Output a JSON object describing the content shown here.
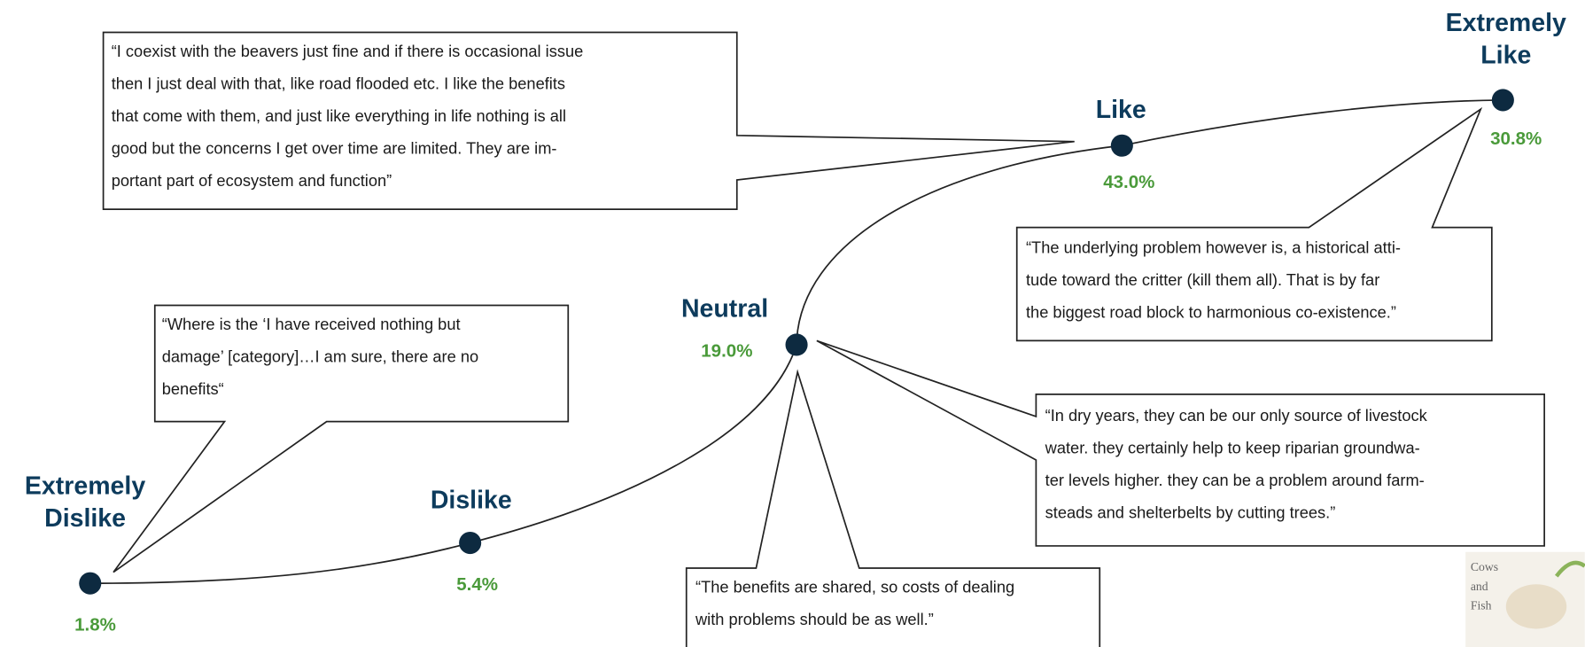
{
  "nodes": [
    {
      "label": [
        "Extremely",
        "Dislike"
      ],
      "percent": "1.8%"
    },
    {
      "label": [
        "Dislike"
      ],
      "percent": "5.4%"
    },
    {
      "label": [
        "Neutral"
      ],
      "percent": "19.0%"
    },
    {
      "label": [
        "Like"
      ],
      "percent": "43.0%"
    },
    {
      "label": [
        "Extremely",
        "Like"
      ],
      "percent": "30.8%"
    }
  ],
  "quotes": [
    {
      "lines": [
        "“I coexist with the beavers just fine and if there is occasional issue",
        "then I just deal with that, like road flooded etc.  I like the benefits",
        "that come with them, and just like everything in life nothing is all",
        "good but the concerns I get over time are limited.  They are im-",
        "portant part of ecosystem and function”"
      ]
    },
    {
      "lines": [
        "“Where is the ‘I have received nothing but",
        "damage’ [category]…I am sure, there are no",
        "benefits“"
      ]
    },
    {
      "lines": [
        "“The underlying problem however is, a historical atti-",
        "tude toward the critter (kill them all).  That is by far",
        "the biggest road block to harmonious co-existence.”"
      ]
    },
    {
      "lines": [
        "“In dry years, they can be our only source of livestock",
        "water.  they certainly help to keep riparian groundwa-",
        "ter levels higher. they can be a problem around farm-",
        "steads and shelterbelts by cutting trees.”"
      ]
    },
    {
      "lines": [
        "“The benefits are shared, so costs of dealing",
        "with problems should be as well.”"
      ]
    }
  ],
  "logo": {
    "lines": [
      "Cows",
      "and",
      "Fish"
    ]
  }
}
